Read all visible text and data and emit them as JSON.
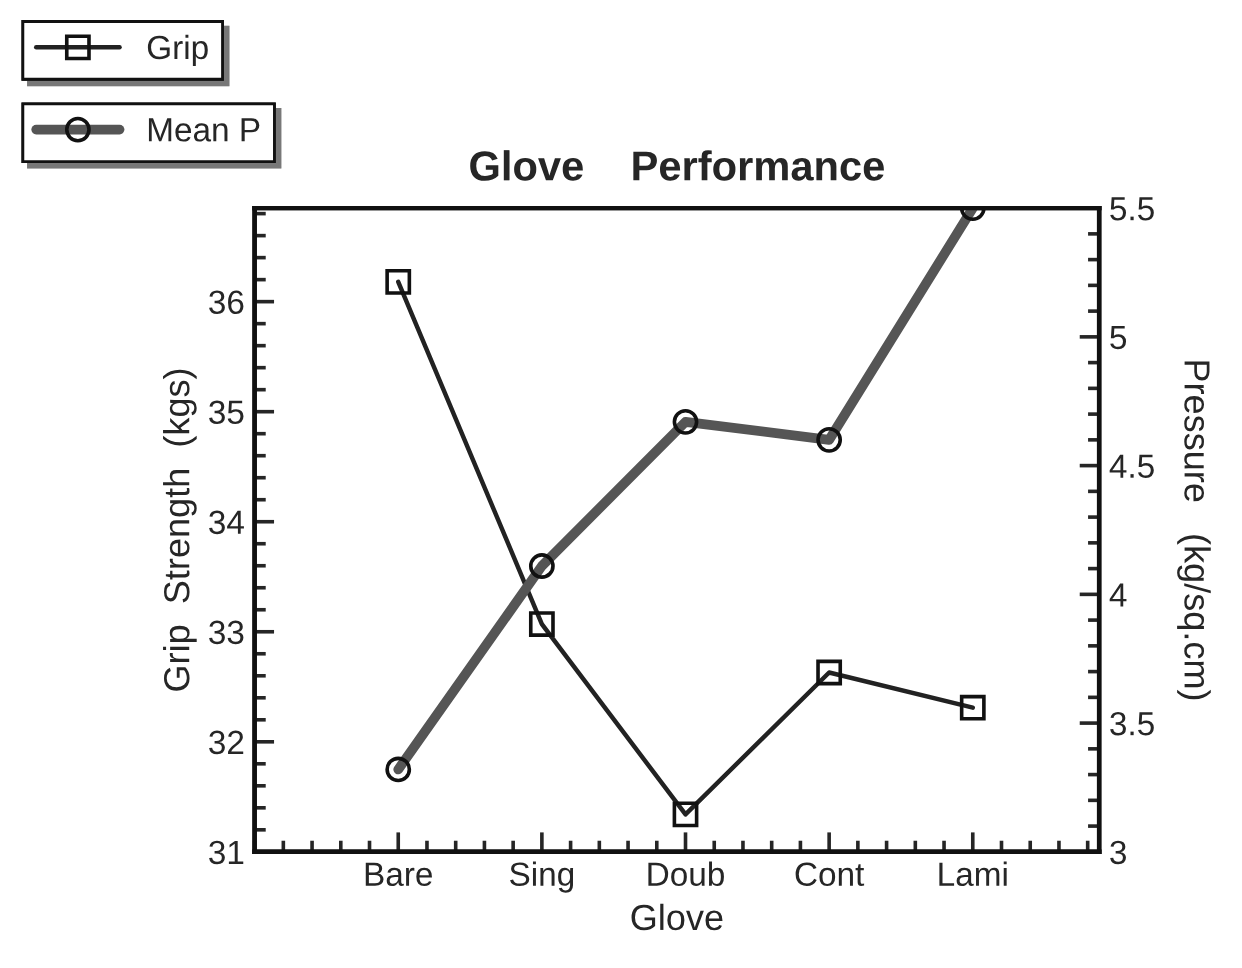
{
  "chart_data": {
    "type": "line",
    "title": "Glove    Performance",
    "xlabel": "Glove",
    "ylabel": "Grip  Strength  (kgs)",
    "y2label": "Pressure   (kg/sq.cm)",
    "categories": [
      "Bare",
      "Sing",
      "Doub",
      "Cont",
      "Lami"
    ],
    "series": [
      {
        "name": "Grip",
        "color": "#222222",
        "marker": "square",
        "values": [
          36.18,
          33.07,
          31.34,
          32.63,
          32.31
        ]
      },
      {
        "name": "Mean P",
        "color": "#555555",
        "marker": "circle",
        "axis": "y2",
        "values": [
          3.32,
          4.11,
          4.67,
          4.6,
          5.5
        ]
      }
    ],
    "ylim": [
      31,
      36.85
    ],
    "yticks": [
      31,
      32,
      33,
      34,
      35,
      36
    ],
    "y2lim": [
      3,
      5.5
    ],
    "y2ticks": [
      3,
      3.5,
      4,
      4.5,
      5,
      5.5
    ],
    "grid": false,
    "legend": "top left",
    "line_style": "solid"
  }
}
